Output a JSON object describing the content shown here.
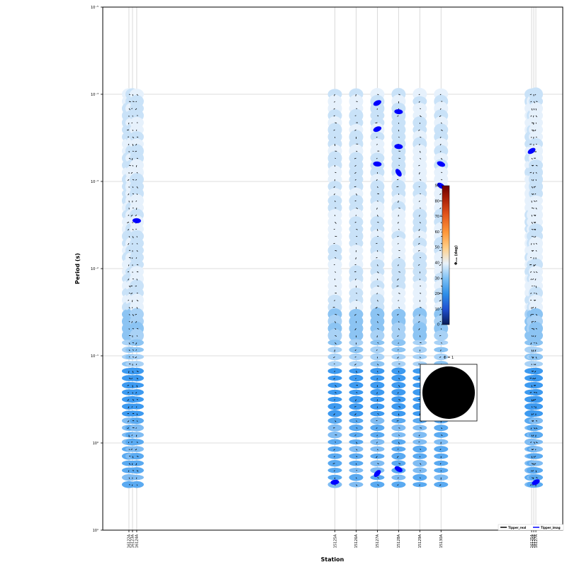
{
  "chart_data": {
    "type": "scatter",
    "xlabel": "Station",
    "ylabel": "Period (s)",
    "y_scale": "log",
    "y_inverted": true,
    "ylim": [
      1e-05,
      10
    ],
    "y_ticks": [
      {
        "value": 1e-05,
        "label": "10⁻⁵"
      },
      {
        "value": 0.0001,
        "label": "10⁻⁴"
      },
      {
        "value": 0.001,
        "label": "10⁻³"
      },
      {
        "value": 0.01,
        "label": "10⁻²"
      },
      {
        "value": 0.1,
        "label": "10⁻¹"
      },
      {
        "value": 1,
        "label": "10⁰"
      },
      {
        "value": 10,
        "label": "10¹"
      }
    ],
    "grid": true,
    "stations": [
      {
        "name": "16122A",
        "x": 37
      },
      {
        "name": "16123A",
        "x": 42
      },
      {
        "name": "16124A",
        "x": 48
      },
      {
        "name": "15125A",
        "x": 328
      },
      {
        "name": "15126A",
        "x": 358
      },
      {
        "name": "15127A",
        "x": 388
      },
      {
        "name": "15128A",
        "x": 418
      },
      {
        "name": "15129A",
        "x": 448
      },
      {
        "name": "15130A",
        "x": 478
      },
      {
        "name": "16125A",
        "x": 606
      },
      {
        "name": "16126A",
        "x": 609
      },
      {
        "name": "16127A",
        "x": 612
      }
    ],
    "period_range": [
      0.0001,
      3.0
    ],
    "colorbar": {
      "label": "Φₘᵢₙ (deg)",
      "range": [
        0,
        90
      ],
      "ticks": [
        "0",
        "10",
        "20",
        "30",
        "40",
        "50",
        "60",
        "70",
        "80",
        "90"
      ],
      "colormap": [
        "#081d58",
        "#1f4fd1",
        "#2e8fe8",
        "#7cc0f5",
        "#e8f2fb",
        "#ffd08a",
        "#ff9a3c",
        "#e0521a",
        "#a11a05",
        "#6b0000"
      ]
    },
    "reference": {
      "label": "Φ = 1"
    },
    "legend": {
      "placement": "lower-right",
      "entries": [
        {
          "label": "Tipper_real",
          "color": "#000000"
        },
        {
          "label": "Tipper_imag",
          "color": "#0000ff"
        }
      ]
    }
  }
}
